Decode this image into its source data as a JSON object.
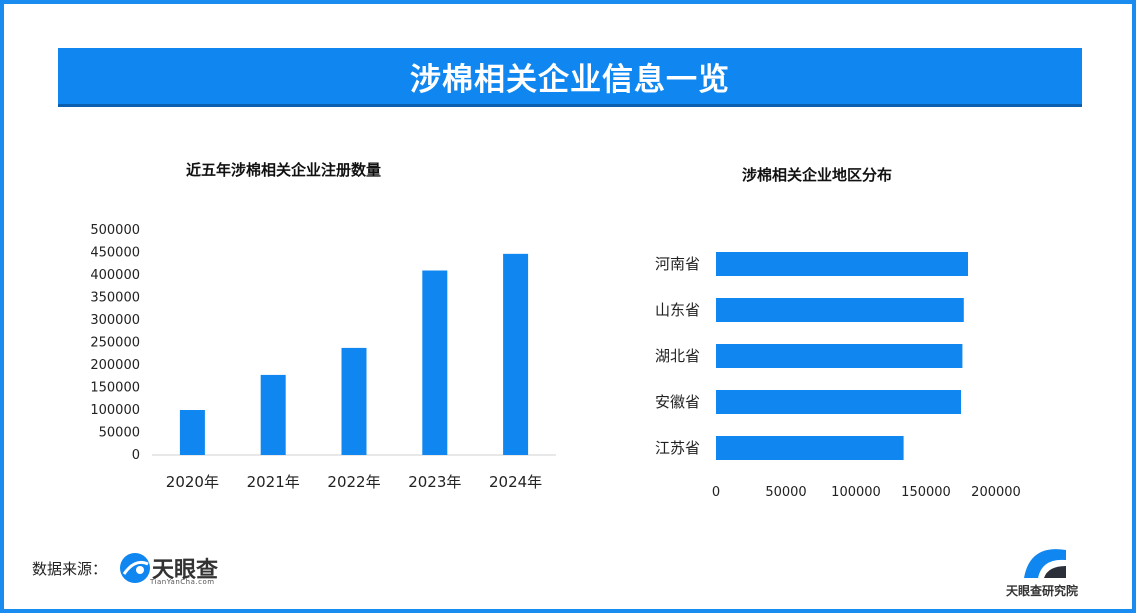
{
  "header": {
    "title": "涉棉相关企业信息一览"
  },
  "chart_data": [
    {
      "type": "bar",
      "title": "近五年涉棉相关企业注册数量",
      "categories": [
        "2020年",
        "2021年",
        "2022年",
        "2023年",
        "2024年"
      ],
      "values": [
        100000,
        178000,
        238000,
        410000,
        447000
      ],
      "ylim": [
        0,
        500000
      ],
      "yticks": [
        0,
        50000,
        100000,
        150000,
        200000,
        250000,
        300000,
        350000,
        400000,
        450000,
        500000
      ],
      "xlabel": "",
      "ylabel": "",
      "grid": false,
      "color": "#0f86f0"
    },
    {
      "type": "bar",
      "orientation": "horizontal",
      "title": "涉棉相关企业地区分布",
      "categories": [
        "河南省",
        "山东省",
        "湖北省",
        "安徽省",
        "江苏省"
      ],
      "values": [
        180000,
        177000,
        176000,
        175000,
        134000
      ],
      "xlim": [
        0,
        200000
      ],
      "xticks": [
        0,
        50000,
        100000,
        150000,
        200000
      ],
      "xlabel": "",
      "ylabel": "",
      "grid": false,
      "color": "#0f86f0"
    }
  ],
  "footer": {
    "source_label": "数据来源：",
    "source_logo_name": "天眼查",
    "source_logo_sub": "TianYanCha.com",
    "brand_name": "天眼查研究院"
  }
}
